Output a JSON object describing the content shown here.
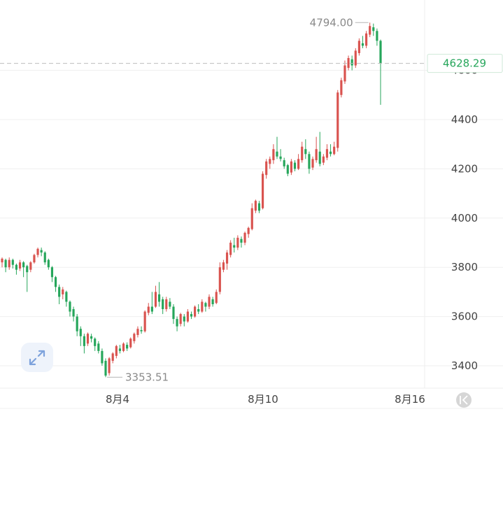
{
  "colors": {
    "up": "#d9534f",
    "down": "#26a65b",
    "grid": "#efefef",
    "current_line": "#bdbdbd"
  },
  "icons": {
    "expand": "expand-arrows-icon",
    "scroll_end": "double-chevron-left-icon"
  },
  "chart_data": {
    "type": "candlestick",
    "current_price": "4628.29",
    "high_label": "4794.00",
    "low_label": "3353.51",
    "y_ticks": [
      "4600",
      "4400",
      "4200",
      "4000",
      "3800",
      "3600",
      "3400"
    ],
    "x_ticks": [
      "8月4",
      "8月10",
      "8月16"
    ],
    "candles": [
      [
        3820,
        3835,
        3800,
        3840
      ],
      [
        3830,
        3800,
        3780,
        3835
      ],
      [
        3800,
        3830,
        3790,
        3840
      ],
      [
        3830,
        3810,
        3795,
        3835
      ],
      [
        3810,
        3790,
        3770,
        3815
      ],
      [
        3795,
        3820,
        3785,
        3830
      ],
      [
        3820,
        3800,
        3760,
        3825
      ],
      [
        3805,
        3780,
        3700,
        3810
      ],
      [
        3790,
        3820,
        3780,
        3825
      ],
      [
        3820,
        3850,
        3815,
        3855
      ],
      [
        3850,
        3875,
        3840,
        3880
      ],
      [
        3870,
        3860,
        3845,
        3880
      ],
      [
        3860,
        3820,
        3810,
        3865
      ],
      [
        3830,
        3800,
        3790,
        3835
      ],
      [
        3800,
        3760,
        3740,
        3805
      ],
      [
        3760,
        3720,
        3700,
        3765
      ],
      [
        3720,
        3680,
        3650,
        3730
      ],
      [
        3690,
        3710,
        3670,
        3720
      ],
      [
        3700,
        3660,
        3640,
        3705
      ],
      [
        3660,
        3620,
        3600,
        3665
      ],
      [
        3630,
        3600,
        3580,
        3640
      ],
      [
        3600,
        3540,
        3520,
        3610
      ],
      [
        3550,
        3520,
        3480,
        3560
      ],
      [
        3520,
        3480,
        3450,
        3530
      ],
      [
        3490,
        3530,
        3480,
        3535
      ],
      [
        3520,
        3510,
        3495,
        3530
      ],
      [
        3510,
        3480,
        3460,
        3515
      ],
      [
        3490,
        3460,
        3450,
        3500
      ],
      [
        3460,
        3410,
        3400,
        3470
      ],
      [
        3420,
        3360,
        3353.51,
        3430
      ],
      [
        3370,
        3430,
        3360,
        3435
      ],
      [
        3420,
        3450,
        3410,
        3455
      ],
      [
        3440,
        3480,
        3430,
        3485
      ],
      [
        3470,
        3460,
        3450,
        3485
      ],
      [
        3460,
        3490,
        3455,
        3495
      ],
      [
        3485,
        3470,
        3460,
        3495
      ],
      [
        3475,
        3510,
        3470,
        3515
      ],
      [
        3500,
        3530,
        3490,
        3535
      ],
      [
        3525,
        3550,
        3515,
        3560
      ],
      [
        3545,
        3540,
        3530,
        3560
      ],
      [
        3540,
        3620,
        3535,
        3625
      ],
      [
        3615,
        3640,
        3605,
        3655
      ],
      [
        3640,
        3620,
        3610,
        3700
      ],
      [
        3640,
        3700,
        3635,
        3725
      ],
      [
        3690,
        3660,
        3640,
        3740
      ],
      [
        3670,
        3630,
        3610,
        3680
      ],
      [
        3630,
        3670,
        3620,
        3680
      ],
      [
        3660,
        3640,
        3630,
        3675
      ],
      [
        3640,
        3590,
        3570,
        3650
      ],
      [
        3590,
        3560,
        3540,
        3600
      ],
      [
        3570,
        3610,
        3560,
        3615
      ],
      [
        3600,
        3580,
        3560,
        3610
      ],
      [
        3580,
        3620,
        3575,
        3630
      ],
      [
        3610,
        3600,
        3590,
        3620
      ],
      [
        3600,
        3640,
        3595,
        3645
      ],
      [
        3630,
        3620,
        3610,
        3650
      ],
      [
        3620,
        3660,
        3615,
        3670
      ],
      [
        3655,
        3640,
        3620,
        3660
      ],
      [
        3640,
        3680,
        3630,
        3690
      ],
      [
        3670,
        3650,
        3640,
        3680
      ],
      [
        3655,
        3700,
        3650,
        3710
      ],
      [
        3700,
        3800,
        3690,
        3820
      ],
      [
        3790,
        3820,
        3780,
        3830
      ],
      [
        3815,
        3860,
        3790,
        3870
      ],
      [
        3850,
        3900,
        3840,
        3910
      ],
      [
        3890,
        3880,
        3860,
        3920
      ],
      [
        3880,
        3920,
        3870,
        3930
      ],
      [
        3915,
        3900,
        3880,
        3925
      ],
      [
        3900,
        3940,
        3890,
        3945
      ],
      [
        3935,
        3960,
        3920,
        3965
      ],
      [
        3955,
        4040,
        3950,
        4060
      ],
      [
        4030,
        4070,
        4020,
        4075
      ],
      [
        4060,
        4030,
        4020,
        4070
      ],
      [
        4040,
        4180,
        4035,
        4190
      ],
      [
        4175,
        4230,
        4160,
        4240
      ],
      [
        4220,
        4240,
        4200,
        4250
      ],
      [
        4235,
        4280,
        4220,
        4300
      ],
      [
        4270,
        4250,
        4240,
        4330
      ],
      [
        4250,
        4240,
        4230,
        4280
      ],
      [
        4235,
        4210,
        4200,
        4245
      ],
      [
        4215,
        4180,
        4170,
        4220
      ],
      [
        4185,
        4230,
        4175,
        4240
      ],
      [
        4225,
        4200,
        4190,
        4235
      ],
      [
        4200,
        4240,
        4195,
        4260
      ],
      [
        4235,
        4290,
        4225,
        4310
      ],
      [
        4280,
        4260,
        4240,
        4320
      ],
      [
        4260,
        4200,
        4180,
        4270
      ],
      [
        4205,
        4240,
        4195,
        4250
      ],
      [
        4235,
        4280,
        4225,
        4330
      ],
      [
        4270,
        4220,
        4210,
        4350
      ],
      [
        4225,
        4250,
        4215,
        4260
      ],
      [
        4245,
        4280,
        4235,
        4300
      ],
      [
        4270,
        4260,
        4250,
        4300
      ],
      [
        4260,
        4290,
        4255,
        4310
      ],
      [
        4285,
        4510,
        4270,
        4520
      ],
      [
        4500,
        4560,
        4490,
        4570
      ],
      [
        4555,
        4620,
        4545,
        4640
      ],
      [
        4610,
        4650,
        4600,
        4660
      ],
      [
        4645,
        4620,
        4600,
        4660
      ],
      [
        4620,
        4680,
        4610,
        4690
      ],
      [
        4670,
        4720,
        4660,
        4730
      ],
      [
        4710,
        4700,
        4690,
        4740
      ],
      [
        4700,
        4750,
        4690,
        4760
      ],
      [
        4745,
        4780,
        4735,
        4794
      ],
      [
        4775,
        4760,
        4740,
        4790
      ],
      [
        4760,
        4720,
        4700,
        4770
      ],
      [
        4720,
        4628.29,
        4460,
        4725
      ]
    ]
  }
}
